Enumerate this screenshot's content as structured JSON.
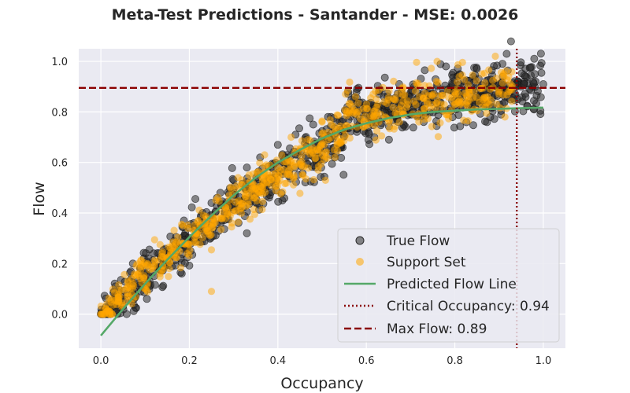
{
  "chart_data": {
    "type": "scatter",
    "title": "Meta-Test Predictions - Santander - MSE: 0.0026",
    "xlabel": "Occupancy",
    "ylabel": "Flow",
    "xlim": [
      -0.05,
      1.05
    ],
    "ylim": [
      -0.135,
      1.05
    ],
    "x_ticks": [
      "0.0",
      "0.2",
      "0.4",
      "0.6",
      "0.8",
      "1.0"
    ],
    "y_ticks": [
      "0.0",
      "0.2",
      "0.4",
      "0.6",
      "0.8",
      "1.0"
    ],
    "grid": true,
    "legend_position": "lower-right",
    "colors": {
      "background": "#eaeaf2",
      "true_flow": "#2b2b2b",
      "support_set": "#ffa500",
      "predicted_line": "#55a868",
      "reference_lines": "#8b0000"
    },
    "series": [
      {
        "name": "True Flow",
        "kind": "scatter",
        "color": "#2b2b2b",
        "description_points": [
          {
            "x": 0.01,
            "y": 0.01
          },
          {
            "x": 0.03,
            "y": 0.02
          },
          {
            "x": 0.05,
            "y": 0.03
          },
          {
            "x": 0.07,
            "y": 0.05
          },
          {
            "x": 0.09,
            "y": 0.09
          },
          {
            "x": 0.11,
            "y": 0.13
          },
          {
            "x": 0.13,
            "y": 0.18
          },
          {
            "x": 0.15,
            "y": 0.22
          },
          {
            "x": 0.17,
            "y": 0.27
          },
          {
            "x": 0.19,
            "y": 0.31
          },
          {
            "x": 0.21,
            "y": 0.36
          },
          {
            "x": 0.23,
            "y": 0.4
          },
          {
            "x": 0.25,
            "y": 0.44
          },
          {
            "x": 0.27,
            "y": 0.48
          },
          {
            "x": 0.3,
            "y": 0.53
          },
          {
            "x": 0.33,
            "y": 0.58
          },
          {
            "x": 0.36,
            "y": 0.62
          },
          {
            "x": 0.4,
            "y": 0.67
          },
          {
            "x": 0.44,
            "y": 0.71
          },
          {
            "x": 0.48,
            "y": 0.75
          },
          {
            "x": 0.52,
            "y": 0.78
          },
          {
            "x": 0.56,
            "y": 0.8
          },
          {
            "x": 0.6,
            "y": 0.82
          },
          {
            "x": 0.65,
            "y": 0.84
          },
          {
            "x": 0.7,
            "y": 0.86
          },
          {
            "x": 0.75,
            "y": 0.87
          },
          {
            "x": 0.8,
            "y": 0.88
          },
          {
            "x": 0.85,
            "y": 0.89
          },
          {
            "x": 0.9,
            "y": 0.89
          },
          {
            "x": 0.95,
            "y": 0.9
          },
          {
            "x": 1.0,
            "y": 0.91
          },
          {
            "x": 0.78,
            "y": 0.98
          },
          {
            "x": 0.25,
            "y": 0.35
          },
          {
            "x": 0.33,
            "y": 0.32
          }
        ]
      },
      {
        "name": "Support Set",
        "kind": "scatter",
        "color": "#ffa500",
        "description_points": [
          {
            "x": 0.02,
            "y": 0.01
          },
          {
            "x": 0.06,
            "y": 0.05
          },
          {
            "x": 0.1,
            "y": 0.1
          },
          {
            "x": 0.14,
            "y": 0.19
          },
          {
            "x": 0.18,
            "y": 0.28
          },
          {
            "x": 0.22,
            "y": 0.37
          },
          {
            "x": 0.26,
            "y": 0.45
          },
          {
            "x": 0.31,
            "y": 0.54
          },
          {
            "x": 0.37,
            "y": 0.63
          },
          {
            "x": 0.43,
            "y": 0.7
          },
          {
            "x": 0.5,
            "y": 0.76
          },
          {
            "x": 0.57,
            "y": 0.8
          },
          {
            "x": 0.64,
            "y": 0.84
          },
          {
            "x": 0.72,
            "y": 0.86
          },
          {
            "x": 0.8,
            "y": 0.88
          },
          {
            "x": 0.88,
            "y": 0.89
          },
          {
            "x": 0.76,
            "y": 1.0
          },
          {
            "x": 0.25,
            "y": 0.09
          }
        ]
      },
      {
        "name": "Predicted Flow Line",
        "kind": "line",
        "color": "#55a868",
        "x": [
          0.0,
          0.05,
          0.1,
          0.15,
          0.2,
          0.25,
          0.3,
          0.35,
          0.4,
          0.45,
          0.5,
          0.55,
          0.6,
          0.65,
          0.7,
          0.75,
          0.8,
          0.85,
          0.9,
          0.95,
          1.0
        ],
        "y": [
          -0.085,
          0.02,
          0.12,
          0.215,
          0.305,
          0.39,
          0.47,
          0.54,
          0.6,
          0.65,
          0.695,
          0.73,
          0.755,
          0.775,
          0.79,
          0.8,
          0.805,
          0.81,
          0.812,
          0.815,
          0.817
        ]
      },
      {
        "name": "Critical Occupancy: 0.94",
        "kind": "vline",
        "style": "dotted",
        "color": "#8b0000",
        "value": 0.94
      },
      {
        "name": "Max Flow: 0.89",
        "kind": "hline",
        "style": "dashed",
        "color": "#8b0000",
        "value": 0.895
      }
    ]
  }
}
